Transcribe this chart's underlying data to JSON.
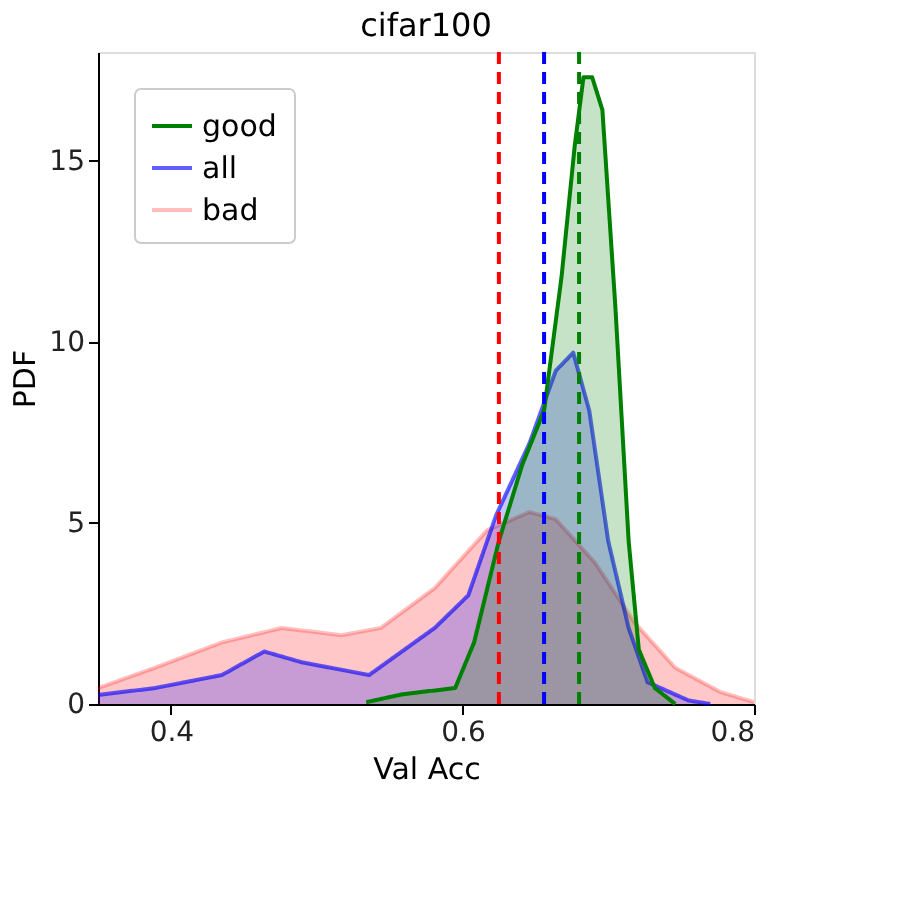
{
  "chart_data": {
    "type": "area",
    "title": "cifar100",
    "xlabel": "Val Acc",
    "ylabel": "PDF",
    "xlim": [
      0.35,
      0.8
    ],
    "xticks": [
      {
        "value": 0.4,
        "label": "0.4"
      },
      {
        "value": 0.6,
        "label": "0.6"
      },
      {
        "value": 0.8,
        "label": "0.8"
      }
    ],
    "ylim": [
      0,
      18
    ],
    "yticks": [
      0,
      5,
      10,
      15
    ],
    "grid": false,
    "legend": "top left",
    "series": [
      {
        "name": "good",
        "color": "#008000",
        "line_style": "solid",
        "x": [
          0.534,
          0.559,
          0.595,
          0.608,
          0.625,
          0.641,
          0.656,
          0.668,
          0.677,
          0.683,
          0.689,
          0.696,
          0.705,
          0.714,
          0.721,
          0.732,
          0.746
        ],
        "values": [
          0.05,
          0.27,
          0.44,
          1.7,
          4.5,
          6.6,
          8.1,
          11.8,
          15.4,
          17.3,
          17.3,
          16.4,
          10.9,
          4.5,
          1.5,
          0.44,
          0
        ]
      },
      {
        "name": "all",
        "color": "#0000ff",
        "x": [
          0.35,
          0.389,
          0.435,
          0.464,
          0.49,
          0.536,
          0.581,
          0.604,
          0.623,
          0.646,
          0.664,
          0.676,
          0.687,
          0.7,
          0.714,
          0.727,
          0.755,
          0.77
        ],
        "values": [
          0.25,
          0.44,
          0.8,
          1.45,
          1.15,
          0.8,
          2.1,
          3.0,
          5.2,
          7.2,
          9.2,
          9.7,
          8.1,
          4.5,
          2.1,
          0.6,
          0.1,
          0
        ]
      },
      {
        "name": "bad",
        "color": "#ff0000",
        "x": [
          0.35,
          0.389,
          0.435,
          0.476,
          0.517,
          0.544,
          0.581,
          0.617,
          0.646,
          0.664,
          0.691,
          0.718,
          0.746,
          0.777,
          0.8
        ],
        "values": [
          0.44,
          1.0,
          1.7,
          2.1,
          1.9,
          2.1,
          3.2,
          4.8,
          5.3,
          5.1,
          3.9,
          2.25,
          1.0,
          0.33,
          0.05
        ]
      }
    ],
    "ref_lines": [
      {
        "axis": "x",
        "value": 0.625,
        "color": "#ff0000",
        "line_style": "dashed"
      },
      {
        "axis": "x",
        "value": 0.656,
        "color": "#0000ff",
        "line_style": "dashed"
      },
      {
        "axis": "x",
        "value": 0.68,
        "color": "#008000",
        "line_style": "dashed"
      }
    ]
  }
}
